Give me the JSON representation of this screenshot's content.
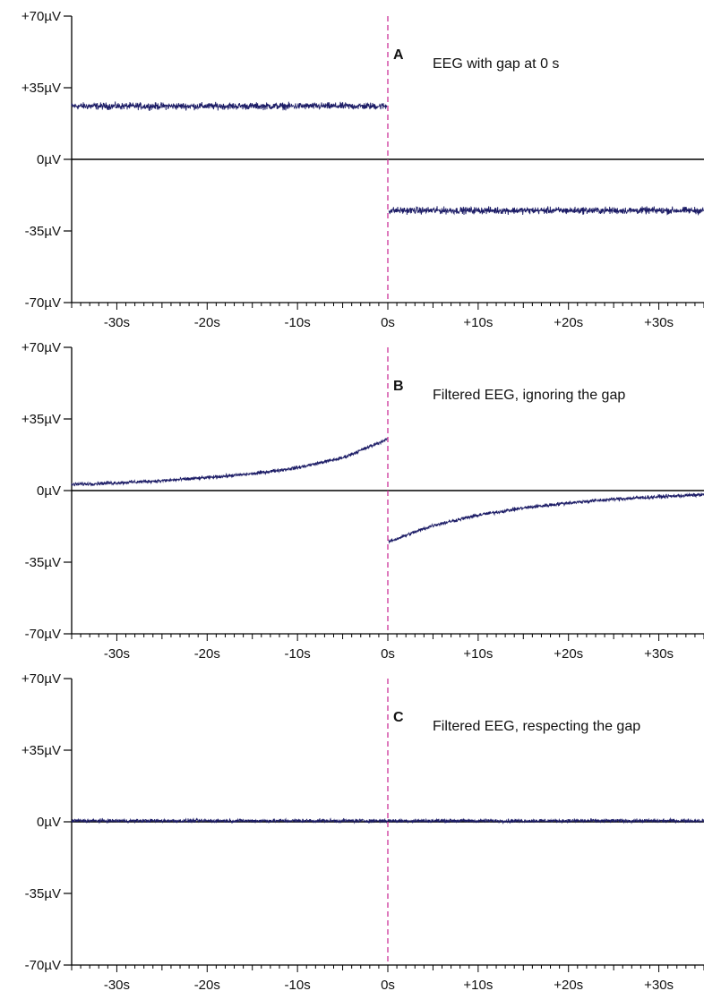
{
  "figure": {
    "colors": {
      "trace": "#1c1c66",
      "zero_line": "#000000",
      "gap_marker": "#cc3399",
      "axis": "#000000"
    },
    "x_tick_labels": [
      "-30s",
      "-20s",
      "-10s",
      "0s",
      "+10s",
      "+20s",
      "+30s"
    ],
    "y_tick_labels": [
      "+70µV",
      "+35µV",
      "0µV",
      "-35µV",
      "-70µV"
    ]
  },
  "chart_data": [
    {
      "type": "line",
      "panel_letter": "A",
      "caption": "EEG with gap at 0 s",
      "title": "",
      "xlabel": "",
      "ylabel": "",
      "xlim": [
        -35,
        35
      ],
      "ylim": [
        -70,
        70
      ],
      "x_ticks": [
        -30,
        -20,
        -10,
        0,
        10,
        20,
        30
      ],
      "y_ticks": [
        70,
        35,
        0,
        -35,
        -70
      ],
      "gap_marker_x": 0,
      "zero_line": true,
      "series": [
        {
          "x": [
            -35,
            -25,
            -15,
            -5,
            -0.1,
            0.1,
            5,
            15,
            25,
            35
          ],
          "y": [
            26,
            26,
            26,
            26,
            26,
            -25,
            -25,
            -25,
            -25,
            -25
          ],
          "noise_amplitude": 2.5
        }
      ]
    },
    {
      "type": "line",
      "panel_letter": "B",
      "caption": "Filtered EEG, ignoring the gap",
      "title": "",
      "xlabel": "",
      "ylabel": "",
      "xlim": [
        -35,
        35
      ],
      "ylim": [
        -70,
        70
      ],
      "x_ticks": [
        -30,
        -20,
        -10,
        0,
        10,
        20,
        30
      ],
      "y_ticks": [
        70,
        35,
        0,
        -35,
        -70
      ],
      "gap_marker_x": 0,
      "zero_line": true,
      "series": [
        {
          "x": [
            -35,
            -30,
            -25,
            -20,
            -15,
            -10,
            -5,
            -0.1,
            0.1,
            5,
            10,
            15,
            20,
            25,
            30,
            35
          ],
          "y": [
            3,
            3.8,
            4.8,
            6.3,
            8.2,
            11.2,
            16,
            25,
            -25,
            -17,
            -12,
            -8.5,
            -6,
            -4.2,
            -3,
            -2
          ],
          "noise_amplitude": 1.3
        }
      ]
    },
    {
      "type": "line",
      "panel_letter": "C",
      "caption": "Filtered EEG, respecting the gap",
      "title": "",
      "xlabel": "",
      "ylabel": "",
      "xlim": [
        -35,
        35
      ],
      "ylim": [
        -70,
        70
      ],
      "x_ticks": [
        -30,
        -20,
        -10,
        0,
        10,
        20,
        30
      ],
      "y_ticks": [
        70,
        35,
        0,
        -35,
        -70
      ],
      "gap_marker_x": 0,
      "zero_line": true,
      "series": [
        {
          "x": [
            -35,
            0,
            35
          ],
          "y": [
            0.5,
            0.5,
            0.5
          ],
          "noise_amplitude": 1.3
        }
      ]
    }
  ]
}
